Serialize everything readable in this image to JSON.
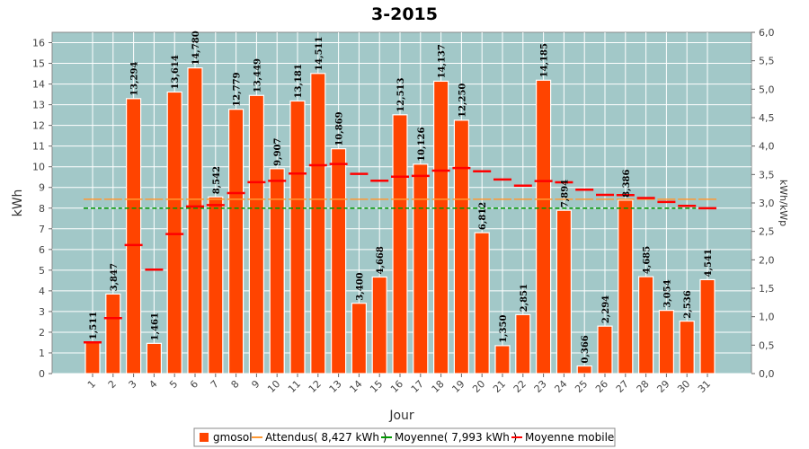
{
  "chart_data": {
    "type": "bar",
    "title": "3-2015",
    "xlabel": "Jour",
    "ylabel": "kWh",
    "ylabel_right": "kWh/kWp",
    "ylim": [
      0,
      16.5
    ],
    "ylim_right": [
      0,
      6.0
    ],
    "yticks": [
      "0",
      "1",
      "2",
      "3",
      "4",
      "5",
      "6",
      "7",
      "8",
      "9",
      "10",
      "11",
      "12",
      "13",
      "14",
      "15",
      "16"
    ],
    "yticks_right": [
      "0,0",
      "0,5",
      "1,0",
      "1,5",
      "2,0",
      "2,5",
      "3,0",
      "3,5",
      "4,0",
      "4,5",
      "5,0",
      "5,5",
      "6,0"
    ],
    "categories": [
      "1",
      "2",
      "3",
      "4",
      "5",
      "6",
      "7",
      "8",
      "9",
      "10",
      "11",
      "12",
      "13",
      "14",
      "15",
      "16",
      "17",
      "18",
      "19",
      "20",
      "21",
      "22",
      "23",
      "24",
      "25",
      "26",
      "27",
      "28",
      "29",
      "30",
      "31"
    ],
    "series": [
      {
        "name": "gmosol",
        "color": "#ff4400",
        "values": [
          1.511,
          3.847,
          13.294,
          1.461,
          13.614,
          14.78,
          8.542,
          12.779,
          13.449,
          9.907,
          13.181,
          14.511,
          10.869,
          3.4,
          4.668,
          12.513,
          10.126,
          14.137,
          12.25,
          6.812,
          1.35,
          2.851,
          14.185,
          7.894,
          0.366,
          2.294,
          8.386,
          4.685,
          3.054,
          2.536,
          4.541
        ],
        "labels": [
          "1,511",
          "3,847",
          "13,294",
          "1,461",
          "13,614",
          "14,780",
          "8,542",
          "12,779",
          "13,449",
          "9,907",
          "13,181",
          "14,511",
          "10,869",
          "3,400",
          "4,668",
          "12,513",
          "10,126",
          "14,137",
          "12,250",
          "6,812",
          "1,350",
          "2,851",
          "14,185",
          "7,894",
          "0,366",
          "2,294",
          "8,386",
          "4,685",
          "3,054",
          "2,536",
          "4,541"
        ]
      },
      {
        "name": "Attendus( 8,427 kWh )",
        "color": "#ff9933",
        "value": 8.427
      },
      {
        "name": "Moyenne( 7,993 kWh )",
        "color": "#009900",
        "value": 7.993
      },
      {
        "name": "Moyenne mobile",
        "color": "#ff0000",
        "values": [
          1.511,
          2.679,
          6.217,
          5.028,
          6.745,
          8.084,
          8.149,
          8.728,
          9.253,
          9.319,
          9.671,
          10.074,
          10.135,
          9.654,
          9.322,
          9.521,
          9.557,
          9.812,
          9.94,
          9.783,
          9.382,
          9.085,
          9.307,
          9.248,
          8.893,
          8.639,
          8.629,
          8.488,
          8.3,
          8.107,
          7.993
        ]
      }
    ],
    "grid": true,
    "legend_position": "bottom",
    "background": "#a2c8c8"
  }
}
